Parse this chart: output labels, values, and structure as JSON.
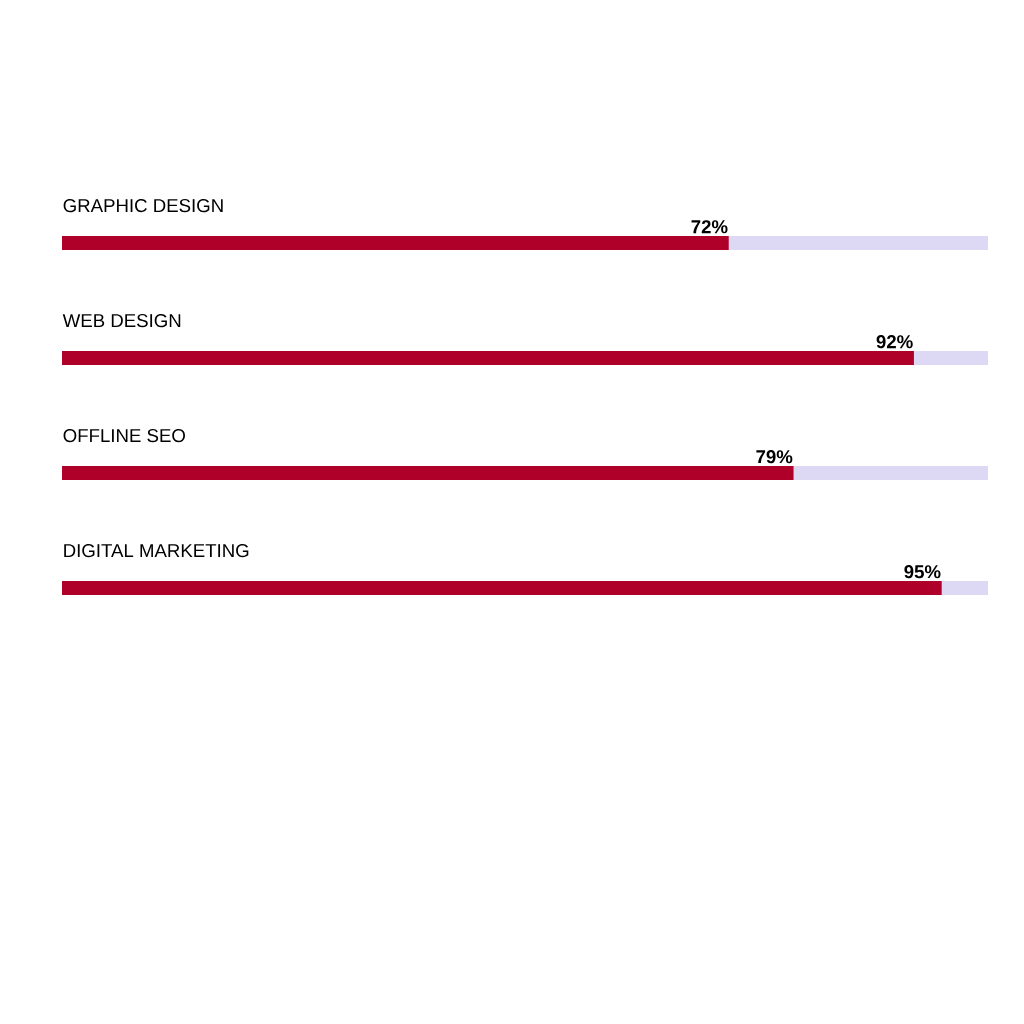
{
  "chart_data": {
    "type": "bar",
    "orientation": "horizontal",
    "categories": [
      "GRAPHIC DESIGN",
      "WEB DESIGN",
      "OFFLINE SEO",
      "DIGITAL MARKETING"
    ],
    "xlim": [
      0,
      100
    ],
    "series": [
      {
        "color": "#ae0029",
        "values": [
          72,
          92,
          79,
          95
        ],
        "value_labels": [
          "72%",
          "92%",
          "79%",
          "95%"
        ]
      }
    ]
  }
}
